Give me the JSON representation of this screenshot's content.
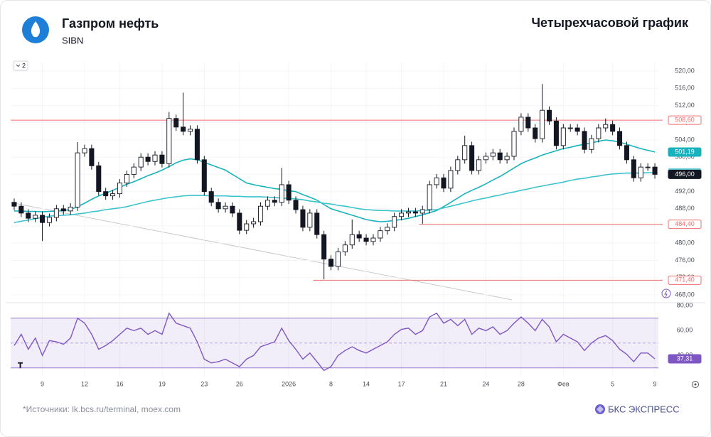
{
  "header": {
    "company": "Газпром нефть",
    "ticker": "SIBN",
    "title": "Четырехчасовой график"
  },
  "badge": "2",
  "footer": {
    "sources": "*Источники: lk.bcs.ru/terminal, moex.com",
    "brand": "БКС ЭКСПРЕСС"
  },
  "chart_data": [
    {
      "type": "candlestick",
      "categories": [
        null,
        null,
        null,
        null,
        "9",
        null,
        null,
        null,
        null,
        null,
        "12",
        null,
        null,
        null,
        null,
        "16",
        null,
        null,
        null,
        null,
        null,
        "19",
        null,
        null,
        null,
        null,
        null,
        "23",
        null,
        null,
        null,
        null,
        "26",
        null,
        null,
        null,
        null,
        null,
        null,
        "2026",
        null,
        null,
        null,
        null,
        null,
        "8",
        null,
        null,
        null,
        null,
        "14",
        null,
        null,
        null,
        null,
        "17",
        null,
        null,
        null,
        null,
        null,
        "21",
        null,
        null,
        null,
        null,
        null,
        "24",
        null,
        null,
        null,
        null,
        "28",
        null,
        null,
        null,
        null,
        null,
        "Фев",
        null,
        null,
        null,
        null,
        null,
        null,
        "5",
        null,
        null,
        null,
        null,
        null,
        "9"
      ],
      "open": [
        489.5,
        488.6,
        487.0,
        485.8,
        486.5,
        484.8,
        486.0,
        488.0,
        487.5,
        488.4,
        501.0,
        502.0,
        498.0,
        492.0,
        491.0,
        491.5,
        494.0,
        496.0,
        497.7,
        500.0,
        499.0,
        500.5,
        498.5,
        509.0,
        507.0,
        506.0,
        506.5,
        499.4,
        492.0,
        489.5,
        488.0,
        488.6,
        487.0,
        483.0,
        484.5,
        485.0,
        488.6,
        490.0,
        489.5,
        493.6,
        490.0,
        487.8,
        483.7,
        487.0,
        482.0,
        476.3,
        474.6,
        478.0,
        479.6,
        482.0,
        481.2,
        480.4,
        481.2,
        482.9,
        483.7,
        486.2,
        487.0,
        487.3,
        487.0,
        487.8,
        493.6,
        495.2,
        492.8,
        496.9,
        499.4,
        502.7,
        496.9,
        499.4,
        500.2,
        501.0,
        499.4,
        500.2,
        506.0,
        509.3,
        506.8,
        504.3,
        510.9,
        508.4,
        502.7,
        506.8,
        506.8,
        506.0,
        501.8,
        504.3,
        506.8,
        507.6,
        506.0,
        502.7,
        499.4,
        495.2,
        497.7,
        497.7
      ],
      "high": [
        490.4,
        489.5,
        487.9,
        487.4,
        487.4,
        486.9,
        488.9,
        488.9,
        489.3,
        503.5,
        502.9,
        502.9,
        498.9,
        492.9,
        492.4,
        494.9,
        496.9,
        498.6,
        500.9,
        500.9,
        501.4,
        501.4,
        510.5,
        509.9,
        515.0,
        507.4,
        507.4,
        500.3,
        492.9,
        490.4,
        489.5,
        489.5,
        487.9,
        485.4,
        485.9,
        489.5,
        490.9,
        490.9,
        497.5,
        494.5,
        490.9,
        488.7,
        487.9,
        487.9,
        482.9,
        477.2,
        478.9,
        480.5,
        485.5,
        482.9,
        482.1,
        482.1,
        483.8,
        484.6,
        487.1,
        487.9,
        488.2,
        488.2,
        488.7,
        494.5,
        496.1,
        496.1,
        497.8,
        500.3,
        505.0,
        503.6,
        500.3,
        501.1,
        501.9,
        501.9,
        501.1,
        506.9,
        510.2,
        510.2,
        507.7,
        517.0,
        511.8,
        509.3,
        507.7,
        507.7,
        507.7,
        506.9,
        505.2,
        507.7,
        509.0,
        508.5,
        506.9,
        503.6,
        500.3,
        498.6,
        498.6,
        498.6
      ],
      "low": [
        487.7,
        486.1,
        484.9,
        484.9,
        480.5,
        483.9,
        485.1,
        486.6,
        486.6,
        487.5,
        500.1,
        497.1,
        491.1,
        490.1,
        490.1,
        490.6,
        493.1,
        495.1,
        496.8,
        498.1,
        498.1,
        497.6,
        497.6,
        506.1,
        505.1,
        505.1,
        498.5,
        491.1,
        488.6,
        487.1,
        487.1,
        486.1,
        482.1,
        482.1,
        483.6,
        484.1,
        487.7,
        488.6,
        488.6,
        489.1,
        486.9,
        482.8,
        482.8,
        481.1,
        471.6,
        473.7,
        473.7,
        477.1,
        478.7,
        480.3,
        479.5,
        479.5,
        480.3,
        482.0,
        482.8,
        485.3,
        486.1,
        486.1,
        484.5,
        486.9,
        492.7,
        491.9,
        491.9,
        496.0,
        498.5,
        496.0,
        496.0,
        498.5,
        499.3,
        498.5,
        498.5,
        499.3,
        505.1,
        505.9,
        503.4,
        503.4,
        507.5,
        501.8,
        501.8,
        505.9,
        505.1,
        500.9,
        500.9,
        503.4,
        505.9,
        505.1,
        501.8,
        498.5,
        494.3,
        494.3,
        496.8,
        495.0
      ],
      "close": [
        488.6,
        487.0,
        485.8,
        486.5,
        484.8,
        486.0,
        488.0,
        487.5,
        488.4,
        501.0,
        502.0,
        498.0,
        492.0,
        491.0,
        491.5,
        494.0,
        496.0,
        497.7,
        500.0,
        499.0,
        500.5,
        498.5,
        509.0,
        507.0,
        506.0,
        506.5,
        499.4,
        492.0,
        489.5,
        488.0,
        488.6,
        487.0,
        483.0,
        484.5,
        485.0,
        488.6,
        490.0,
        489.5,
        493.6,
        490.0,
        487.8,
        483.7,
        487.0,
        482.0,
        476.3,
        474.6,
        478.0,
        479.6,
        482.0,
        481.2,
        480.4,
        481.2,
        482.9,
        483.7,
        486.2,
        487.0,
        487.3,
        487.0,
        487.8,
        493.6,
        495.2,
        492.8,
        496.9,
        499.4,
        502.7,
        496.9,
        499.4,
        500.2,
        501.0,
        499.4,
        500.2,
        506.0,
        509.3,
        506.8,
        504.3,
        510.9,
        508.4,
        502.7,
        506.8,
        506.8,
        506.0,
        501.8,
        504.3,
        506.8,
        507.6,
        506.0,
        502.7,
        499.4,
        495.2,
        497.7,
        497.7,
        496.0
      ],
      "up_color": "#ffffff",
      "down_color": "#131722",
      "series": [
        {
          "color": "#17b2be",
          "values": [
            487.5,
            487.5,
            487.4,
            487.4,
            487.3,
            487.4,
            487.5,
            487.6,
            487.8,
            488.5,
            489.3,
            490.2,
            491.0,
            491.6,
            492.3,
            493.0,
            493.7,
            494.3,
            495.0,
            495.7,
            496.3,
            497.0,
            497.8,
            498.7,
            499.3,
            499.6,
            499.4,
            498.8,
            498.2,
            497.6,
            497.0,
            496.0,
            495.0,
            494.0,
            493.6,
            493.3,
            493.0,
            492.7,
            492.5,
            492.2,
            492.0,
            491.3,
            490.7,
            490.0,
            489.0,
            488.0,
            487.5,
            487.0,
            486.5,
            486.0,
            485.5,
            485.2,
            485.0,
            485.1,
            485.3,
            485.5,
            485.8,
            486.2,
            486.6,
            487.1,
            487.6,
            488.5,
            489.5,
            490.5,
            491.5,
            492.3,
            493.0,
            493.8,
            494.7,
            495.5,
            496.5,
            497.5,
            498.5,
            499.2,
            499.8,
            500.5,
            501.0,
            501.5,
            502.0,
            502.3,
            502.7,
            503.0,
            503.3,
            503.7,
            504.0,
            503.8,
            503.5,
            503.0,
            502.5,
            502.0,
            501.6,
            501.2
          ]
        },
        {
          "color": "#3cc3cd",
          "values": [
            484.8,
            485.1,
            485.4,
            485.7,
            486.0,
            486.3,
            486.4,
            486.5,
            486.6,
            486.8,
            487.0,
            487.3,
            487.5,
            487.8,
            488.0,
            488.2,
            488.5,
            488.9,
            489.3,
            489.7,
            490.0,
            490.3,
            490.6,
            490.8,
            491.0,
            491.1,
            491.1,
            491.1,
            491.0,
            491.0,
            491.0,
            490.9,
            490.9,
            490.8,
            490.8,
            490.8,
            490.7,
            490.6,
            490.5,
            490.4,
            490.3,
            490.1,
            489.8,
            489.6,
            489.3,
            489.1,
            488.8,
            488.6,
            488.3,
            488.0,
            487.8,
            487.7,
            487.6,
            487.6,
            487.5,
            487.5,
            487.5,
            487.5,
            487.6,
            487.7,
            487.8,
            488.2,
            488.6,
            489.0,
            489.4,
            489.8,
            490.2,
            490.5,
            490.9,
            491.2,
            491.6,
            491.9,
            492.3,
            492.6,
            493.0,
            493.3,
            493.6,
            493.9,
            494.2,
            494.6,
            494.9,
            495.1,
            495.4,
            495.6,
            495.9,
            496.1,
            496.2,
            496.3,
            496.3,
            496.3,
            496.4,
            496.4
          ]
        }
      ],
      "levels": [
        {
          "value": 508.6,
          "label": "508,60",
          "color": "#f26d6d"
        },
        {
          "value": 484.4,
          "label": "484,40",
          "color": "#f26d6d"
        },
        {
          "value": 471.4,
          "label": "471,40",
          "color": "#f26d6d"
        }
      ],
      "markers": [
        {
          "value": 501.19,
          "label": "501,19",
          "color": "#17b2be"
        },
        {
          "value": 496.36,
          "label": "496,36",
          "color": "#6dd0d8"
        },
        {
          "value": 496.0,
          "label": "496,00",
          "color": "#131722"
        }
      ],
      "ylim": [
        466.5,
        522
      ],
      "yticks": [
        {
          "value": 468,
          "label": "468,00"
        },
        {
          "value": 472,
          "label": "472,00"
        },
        {
          "value": 476,
          "label": "476,00"
        },
        {
          "value": 480,
          "label": "480,00"
        },
        {
          "value": 484,
          "label": "484,00"
        },
        {
          "value": 488,
          "label": "488,00"
        },
        {
          "value": 492,
          "label": "492,00"
        },
        {
          "value": 496,
          "label": "496,00"
        },
        {
          "value": 500,
          "label": "500,00"
        },
        {
          "value": 504,
          "label": "504,00"
        },
        {
          "value": 508,
          "label": "508,00"
        },
        {
          "value": 512,
          "label": "512,00"
        },
        {
          "value": 516,
          "label": "516,00"
        },
        {
          "value": 520,
          "label": "520,00"
        }
      ],
      "grid": true
    },
    {
      "type": "line",
      "series": [
        {
          "color": "#7e57c2",
          "values": [
            48,
            57,
            45,
            54,
            40,
            52,
            51,
            49,
            54,
            70,
            66,
            57,
            45,
            48,
            52,
            57,
            62,
            60,
            62,
            57,
            60,
            57,
            74,
            66,
            64,
            62,
            51,
            37,
            34,
            35,
            37,
            34,
            31,
            37,
            40,
            47,
            49,
            51,
            62,
            52,
            45,
            37,
            42,
            35,
            28,
            31,
            40,
            44,
            47,
            44,
            42,
            45,
            48,
            51,
            57,
            61,
            62,
            57,
            60,
            71,
            74,
            66,
            69,
            64,
            69,
            57,
            62,
            60,
            63,
            57,
            60,
            66,
            71,
            66,
            60,
            69,
            63,
            51,
            57,
            54,
            51,
            44,
            50,
            54,
            56,
            52,
            45,
            41,
            35,
            42,
            42,
            37.31
          ]
        }
      ],
      "markers": [
        {
          "value": 37.31,
          "label": "37,31",
          "color": "#7e57c2"
        }
      ],
      "bands": [
        70,
        50,
        30
      ],
      "ylim": [
        23,
        83
      ],
      "yticks": [
        {
          "value": 40,
          "label": "40,00"
        },
        {
          "value": 60,
          "label": "60,00"
        },
        {
          "value": 80,
          "label": "80,00"
        }
      ]
    }
  ]
}
